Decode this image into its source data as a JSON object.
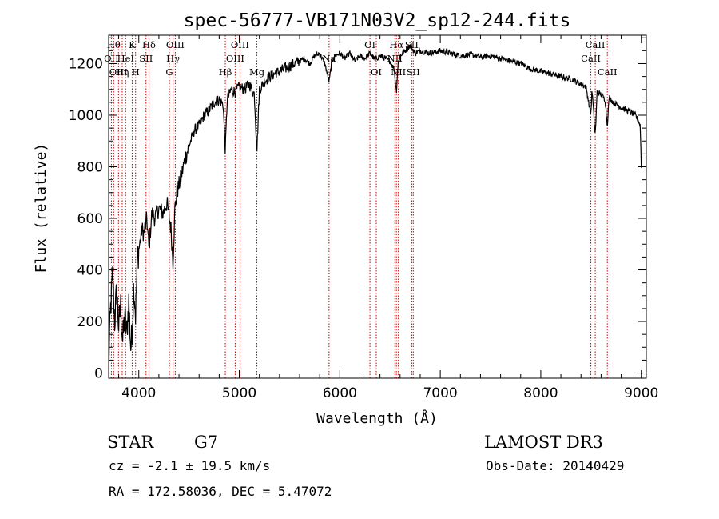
{
  "chart_data": {
    "type": "line",
    "title": "spec-56777-VB171N03V2_sp12-244.fits",
    "xlabel": "Wavelength (Å)",
    "ylabel": "Flux (relative)",
    "xlim": [
      3700,
      9050
    ],
    "ylim": [
      -20,
      1310
    ],
    "x_ticks": [
      4000,
      5000,
      6000,
      7000,
      8000,
      9000
    ],
    "y_ticks": [
      0,
      200,
      400,
      600,
      800,
      1000,
      1200
    ],
    "grid": false,
    "spectrum": {
      "x": [
        3700,
        3720,
        3740,
        3760,
        3780,
        3800,
        3820,
        3840,
        3860,
        3880,
        3900,
        3920,
        3933,
        3950,
        3968,
        3990,
        4010,
        4030,
        4050,
        4080,
        4101,
        4130,
        4160,
        4200,
        4240,
        4280,
        4320,
        4340,
        4360,
        4380,
        4420,
        4460,
        4500,
        4550,
        4600,
        4650,
        4700,
        4750,
        4800,
        4840,
        4861,
        4880,
        4920,
        4960,
        5000,
        5050,
        5100,
        5150,
        5175,
        5200,
        5250,
        5300,
        5350,
        5400,
        5450,
        5500,
        5550,
        5600,
        5650,
        5700,
        5750,
        5800,
        5850,
        5895,
        5920,
        5950,
        6000,
        6050,
        6100,
        6150,
        6200,
        6250,
        6300,
        6350,
        6400,
        6450,
        6500,
        6540,
        6563,
        6580,
        6600,
        6650,
        6700,
        6750,
        6800,
        6900,
        7000,
        7100,
        7200,
        7300,
        7400,
        7500,
        7600,
        7700,
        7800,
        7900,
        8000,
        8100,
        8200,
        8300,
        8400,
        8450,
        8498,
        8510,
        8542,
        8560,
        8600,
        8640,
        8662,
        8680,
        8720,
        8760,
        8800,
        8850,
        8900,
        8940,
        8970,
        8990,
        9000
      ],
      "y": [
        40,
        250,
        380,
        200,
        320,
        180,
        260,
        120,
        220,
        150,
        280,
        100,
        140,
        350,
        230,
        460,
        500,
        560,
        540,
        600,
        480,
        620,
        600,
        640,
        620,
        660,
        560,
        430,
        640,
        700,
        760,
        830,
        880,
        940,
        960,
        1000,
        1020,
        1050,
        1060,
        1040,
        860,
        1060,
        1100,
        1090,
        1110,
        1100,
        1120,
        1080,
        860,
        1100,
        1130,
        1150,
        1160,
        1170,
        1180,
        1190,
        1200,
        1210,
        1220,
        1200,
        1230,
        1240,
        1200,
        1130,
        1210,
        1230,
        1240,
        1220,
        1240,
        1210,
        1230,
        1220,
        1240,
        1215,
        1230,
        1220,
        1210,
        1180,
        1090,
        1200,
        1230,
        1250,
        1270,
        1240,
        1250,
        1240,
        1250,
        1240,
        1230,
        1235,
        1225,
        1230,
        1220,
        1210,
        1200,
        1180,
        1170,
        1160,
        1150,
        1140,
        1120,
        1110,
        1000,
        1100,
        920,
        1090,
        1080,
        1060,
        960,
        1070,
        1050,
        1040,
        1030,
        1020,
        1010,
        1000,
        980,
        960,
        800
      ]
    },
    "spectral_lines": [
      {
        "wavelength": 3727,
        "label": "OII",
        "row": 1
      },
      {
        "wavelength": 3750,
        "label": "Hθ",
        "row": 0
      },
      {
        "wavelength": 3798,
        "label": "OIII",
        "row": 2
      },
      {
        "wavelength": 3835,
        "label": "Hη",
        "row": 2
      },
      {
        "wavelength": 3869,
        "label": "HeI",
        "row": 1
      },
      {
        "wavelength": 3934,
        "label": "K",
        "row": 0
      },
      {
        "wavelength": 3968,
        "label": "H",
        "row": 2
      },
      {
        "wavelength": 4072,
        "label": "SII",
        "row": 1
      },
      {
        "wavelength": 4101,
        "label": "Hδ",
        "row": 0
      },
      {
        "wavelength": 4304,
        "label": "G",
        "row": 2
      },
      {
        "wavelength": 4341,
        "label": "Hγ",
        "row": 1
      },
      {
        "wavelength": 4363,
        "label": "OIII",
        "row": 0
      },
      {
        "wavelength": 4861,
        "label": "Hβ",
        "row": 2
      },
      {
        "wavelength": 4959,
        "label": "OIII",
        "row": 1
      },
      {
        "wavelength": 5007,
        "label": "OIII",
        "row": 0
      },
      {
        "wavelength": 5175,
        "label": "Mg",
        "row": 2
      },
      {
        "wavelength": 5893,
        "label": "Na",
        "row": 1
      },
      {
        "wavelength": 6300,
        "label": "OI",
        "row": 0
      },
      {
        "wavelength": 6363,
        "label": "OI",
        "row": 2
      },
      {
        "wavelength": 6548,
        "label": "NII",
        "row": 1
      },
      {
        "wavelength": 6563,
        "label": "Hα",
        "row": 0
      },
      {
        "wavelength": 6583,
        "label": "NII",
        "row": 2
      },
      {
        "wavelength": 6716,
        "label": "SII",
        "row": 0
      },
      {
        "wavelength": 6731,
        "label": "SII",
        "row": 2
      },
      {
        "wavelength": 8498,
        "label": "CaII",
        "row": 1
      },
      {
        "wavelength": 8542,
        "label": "CaII",
        "row": 0
      },
      {
        "wavelength": 8662,
        "label": "CaII",
        "row": 2
      }
    ]
  },
  "info": {
    "object_class": "STAR",
    "subclass": "G7",
    "redshift_text": "cz = -2.1 ± 19.5 km/s",
    "coords_text": "RA = 172.58036, DEC =   5.47072",
    "survey": "LAMOST DR3",
    "obs_date_text": "Obs-Date: 20140429"
  },
  "colors": {
    "line_marker": "#cc0000",
    "spectrum": "#000000"
  }
}
